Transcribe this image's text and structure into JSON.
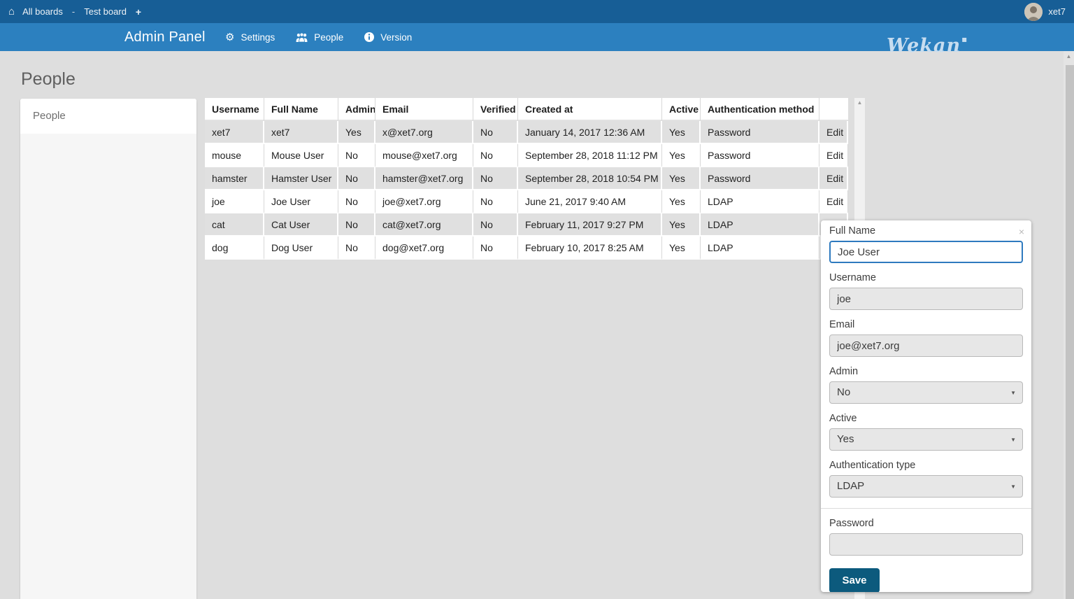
{
  "icons": {
    "home": "⌂",
    "plus": "+",
    "gear": "⚙",
    "up_arrow": "▲",
    "select_arrow": "▼",
    "close": "×",
    "logo_dot": "▪"
  },
  "topbar": {
    "breadcrumb": {
      "all_boards": "All boards",
      "separator": "-",
      "board": "Test board"
    },
    "username": "xet7"
  },
  "adminbar": {
    "title": "Admin Panel",
    "nav": [
      {
        "icon": "gear-icon",
        "label": "Settings"
      },
      {
        "icon": "people-icon",
        "label": "People"
      },
      {
        "icon": "info-icon",
        "label": "Version"
      }
    ],
    "logo": "Wekan"
  },
  "main": {
    "heading": "People",
    "sidebar_items": [
      {
        "label": "People",
        "active": true
      }
    ]
  },
  "table": {
    "columns": [
      "Username",
      "Full Name",
      "Admin",
      "Email",
      "Verified",
      "Created at",
      "Active",
      "Authentication method",
      ""
    ],
    "edit_label": "Edit",
    "rows": [
      [
        "xet7",
        "xet7",
        "Yes",
        "x@xet7.org",
        "No",
        "January 14, 2017 12:36 AM",
        "Yes",
        "Password"
      ],
      [
        "mouse",
        "Mouse User",
        "No",
        "mouse@xet7.org",
        "No",
        "September 28, 2018 11:12 PM",
        "Yes",
        "Password"
      ],
      [
        "hamster",
        "Hamster User",
        "No",
        "hamster@xet7.org",
        "No",
        "September 28, 2018 10:54 PM",
        "Yes",
        "Password"
      ],
      [
        "joe",
        "Joe User",
        "No",
        "joe@xet7.org",
        "No",
        "June 21, 2017 9:40 AM",
        "Yes",
        "LDAP"
      ],
      [
        "cat",
        "Cat User",
        "No",
        "cat@xet7.org",
        "No",
        "February 11, 2017 9:27 PM",
        "Yes",
        "LDAP"
      ],
      [
        "dog",
        "Dog User",
        "No",
        "dog@xet7.org",
        "No",
        "February 10, 2017 8:25 AM",
        "Yes",
        "LDAP"
      ]
    ]
  },
  "edit_popup": {
    "full_name": {
      "label": "Full Name",
      "value": "Joe User"
    },
    "username": {
      "label": "Username",
      "value": "joe"
    },
    "email": {
      "label": "Email",
      "value": "joe@xet7.org"
    },
    "admin": {
      "label": "Admin",
      "value": "No"
    },
    "active": {
      "label": "Active",
      "value": "Yes"
    },
    "auth_type": {
      "label": "Authentication type",
      "value": "LDAP"
    },
    "password": {
      "label": "Password",
      "value": ""
    },
    "save_label": "Save"
  },
  "colors": {
    "topbar": "#175e96",
    "adminbar": "#2c80bf",
    "save_button": "#0c5a7d",
    "focus_border": "#2e7abf",
    "row_alt": "#e0e0e0",
    "page_bg": "#dedede"
  }
}
